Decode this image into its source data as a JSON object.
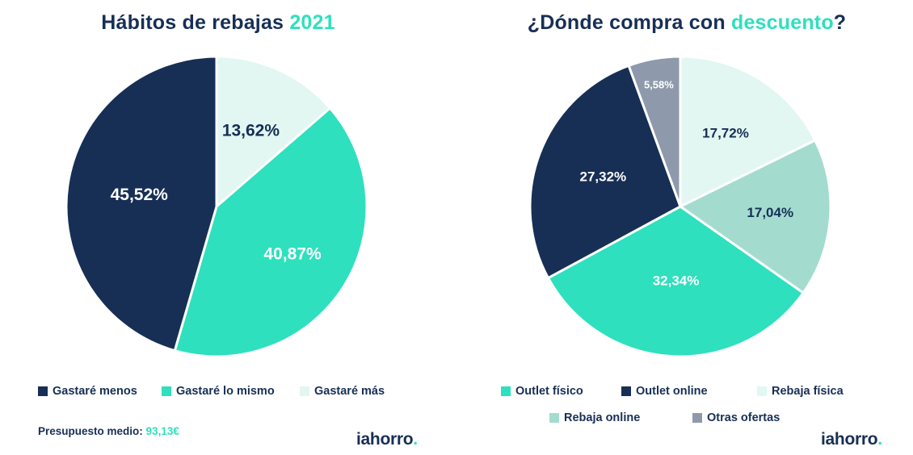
{
  "chart_data": [
    {
      "type": "pie",
      "title": "Hábitos de rebajas",
      "title_accent": "2021",
      "slices": [
        {
          "label": "Gastaré más",
          "value": 13.62,
          "value_label": "13,62%",
          "color": "#e2f6f2",
          "text_color": "#172f55"
        },
        {
          "label": "Gastaré lo mismo",
          "value": 40.87,
          "value_label": "40,87%",
          "color": "#2ee0bd",
          "text_color": "#ffffff"
        },
        {
          "label": "Gastaré menos",
          "value": 45.52,
          "value_label": "45,52%",
          "color": "#172f55",
          "text_color": "#ffffff"
        }
      ],
      "legend": [
        "Gastaré menos",
        "Gastaré lo mismo",
        "Gastaré más"
      ],
      "legend_colors": [
        "#172f55",
        "#2ee0bd",
        "#e2f6f2"
      ]
    },
    {
      "type": "pie",
      "title": "¿Dónde compra con",
      "title_accent": "descuento",
      "title_suffix": "?",
      "slices": [
        {
          "label": "Rebaja física",
          "value": 17.72,
          "value_label": "17,72%",
          "color": "#e2f6f2",
          "text_color": "#172f55"
        },
        {
          "label": "Rebaja online",
          "value": 17.04,
          "value_label": "17,04%",
          "color": "#a3dccf",
          "text_color": "#172f55"
        },
        {
          "label": "Outlet físico",
          "value": 32.34,
          "value_label": "32,34%",
          "color": "#2ee0bd",
          "text_color": "#ffffff"
        },
        {
          "label": "Outlet online",
          "value": 27.32,
          "value_label": "27,32%",
          "color": "#172f55",
          "text_color": "#ffffff"
        },
        {
          "label": "Otras ofertas",
          "value": 5.58,
          "value_label": "5,58%",
          "color": "#8e9aab",
          "text_color": "#ffffff"
        }
      ],
      "legend": [
        "Outlet físico",
        "Outlet online",
        "Rebaja física",
        "Rebaja online",
        "Otras ofertas"
      ],
      "legend_colors": [
        "#2ee0bd",
        "#172f55",
        "#e2f6f2",
        "#a3dccf",
        "#8e9aab"
      ]
    }
  ],
  "budget": {
    "label": "Presupuesto medio:",
    "value": "93,13€"
  },
  "logo": {
    "text": "iahorro",
    "dot": "."
  }
}
